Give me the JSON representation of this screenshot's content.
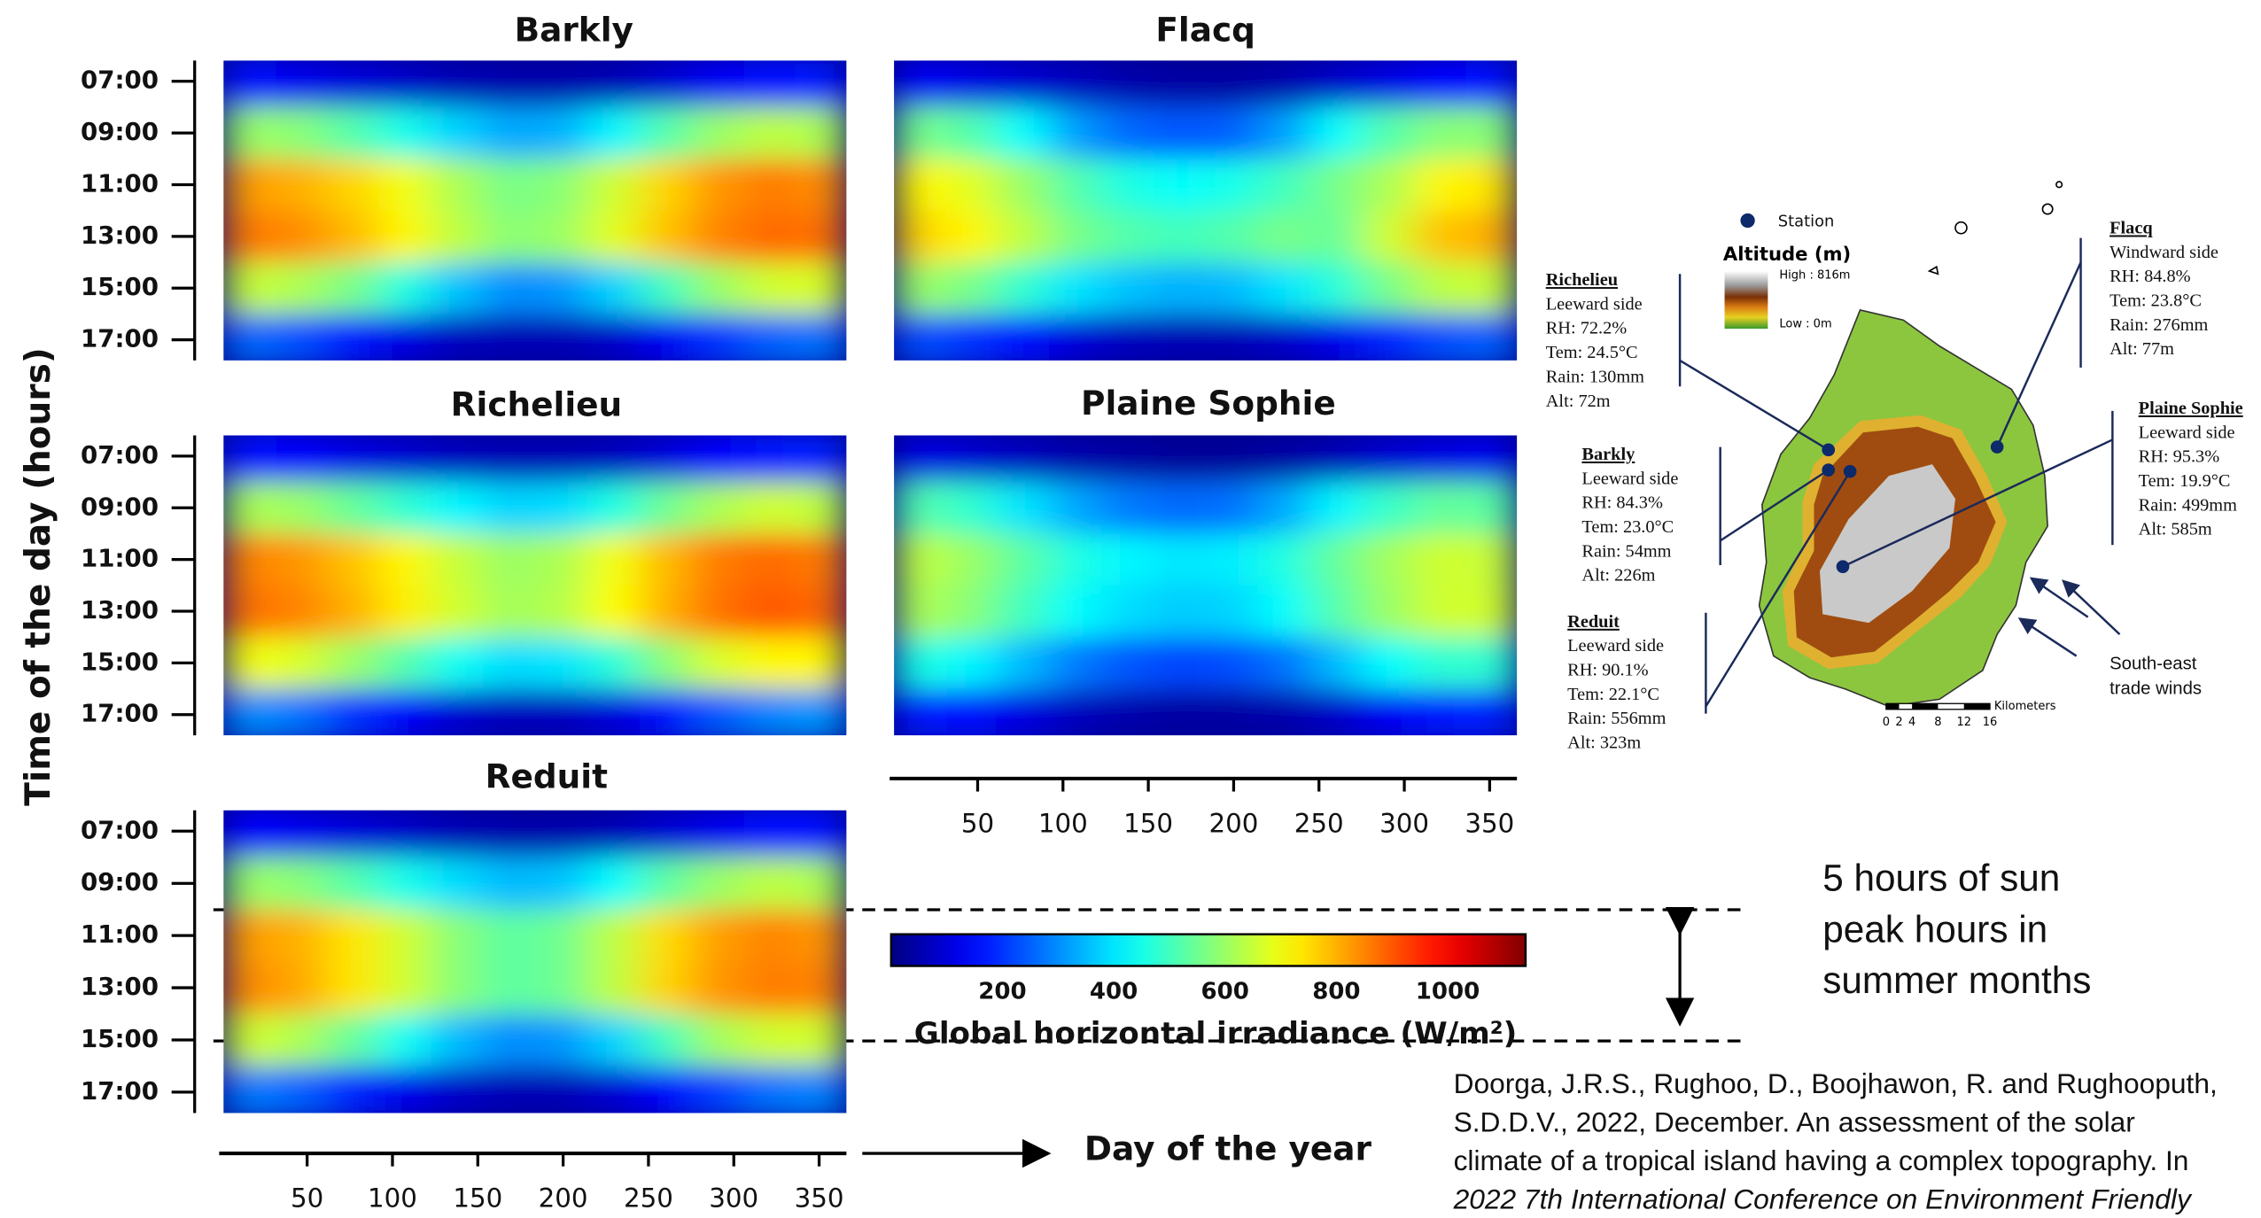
{
  "chart_data": [
    {
      "type": "heatmap",
      "title": "Barkly",
      "xlim": [
        1,
        366
      ],
      "ylim": [
        17.8,
        6.2
      ],
      "yticks": [
        {
          "value": 7,
          "label": "07:00"
        },
        {
          "value": 9,
          "label": "09:00"
        },
        {
          "value": 11,
          "label": "11:00"
        },
        {
          "value": 13,
          "label": "13:00"
        },
        {
          "value": 15,
          "label": "15:00"
        },
        {
          "value": 17,
          "label": "17:00"
        }
      ],
      "day_edges": [
        1,
        32,
        61,
        92,
        122,
        153,
        183,
        214,
        245,
        275,
        306,
        336,
        366
      ],
      "hour_edges": [
        6,
        8,
        10,
        12,
        14,
        16,
        18
      ],
      "z": [
        [
          150,
          120,
          100,
          80,
          60,
          50,
          50,
          60,
          90,
          130,
          160,
          170
        ],
        [
          600,
          580,
          520,
          450,
          380,
          330,
          340,
          420,
          520,
          600,
          640,
          620
        ],
        [
          820,
          800,
          760,
          700,
          620,
          560,
          580,
          660,
          760,
          830,
          860,
          840
        ],
        [
          860,
          840,
          790,
          720,
          640,
          580,
          600,
          680,
          780,
          850,
          880,
          870
        ],
        [
          650,
          620,
          560,
          460,
          360,
          300,
          310,
          380,
          500,
          600,
          660,
          670
        ],
        [
          260,
          230,
          170,
          110,
          70,
          60,
          60,
          80,
          130,
          200,
          250,
          270
        ]
      ]
    },
    {
      "type": "heatmap",
      "title": "Flacq",
      "xlim": [
        1,
        366
      ],
      "ylim": [
        17.8,
        6.2
      ],
      "day_edges": [
        1,
        32,
        61,
        92,
        122,
        153,
        183,
        214,
        245,
        275,
        306,
        336,
        366
      ],
      "hour_edges": [
        6,
        8,
        10,
        12,
        14,
        16,
        18
      ],
      "z": [
        [
          130,
          110,
          90,
          70,
          50,
          40,
          40,
          50,
          80,
          110,
          140,
          150
        ],
        [
          560,
          520,
          430,
          320,
          260,
          240,
          250,
          320,
          430,
          520,
          580,
          580
        ],
        [
          720,
          680,
          600,
          520,
          460,
          430,
          450,
          500,
          560,
          620,
          720,
          740
        ],
        [
          760,
          720,
          640,
          560,
          520,
          500,
          520,
          560,
          540,
          660,
          780,
          800
        ],
        [
          600,
          560,
          480,
          400,
          360,
          340,
          350,
          400,
          470,
          560,
          640,
          650
        ],
        [
          230,
          200,
          150,
          100,
          70,
          60,
          60,
          80,
          120,
          180,
          230,
          250
        ]
      ]
    },
    {
      "type": "heatmap",
      "title": "Richelieu",
      "xlim": [
        1,
        366
      ],
      "ylim": [
        17.8,
        6.2
      ],
      "yticks": [
        {
          "value": 7,
          "label": "07:00"
        },
        {
          "value": 9,
          "label": "09:00"
        },
        {
          "value": 11,
          "label": "11:00"
        },
        {
          "value": 13,
          "label": "13:00"
        },
        {
          "value": 15,
          "label": "15:00"
        },
        {
          "value": 17,
          "label": "17:00"
        }
      ],
      "day_edges": [
        1,
        32,
        61,
        92,
        122,
        153,
        183,
        214,
        245,
        275,
        306,
        336,
        366
      ],
      "hour_edges": [
        6,
        8,
        10,
        12,
        14,
        16,
        18
      ],
      "z": [
        [
          160,
          140,
          110,
          90,
          70,
          60,
          60,
          70,
          100,
          140,
          170,
          180
        ],
        [
          620,
          600,
          540,
          480,
          420,
          380,
          390,
          460,
          550,
          620,
          660,
          640
        ],
        [
          850,
          830,
          780,
          720,
          650,
          600,
          620,
          700,
          790,
          860,
          880,
          860
        ],
        [
          870,
          850,
          800,
          730,
          660,
          610,
          630,
          710,
          800,
          870,
          900,
          880
        ],
        [
          700,
          670,
          600,
          520,
          440,
          390,
          400,
          470,
          580,
          670,
          720,
          720
        ],
        [
          300,
          270,
          200,
          140,
          90,
          70,
          70,
          100,
          160,
          240,
          290,
          310
        ]
      ]
    },
    {
      "type": "heatmap",
      "title": "Plaine Sophie",
      "xlim": [
        1,
        366
      ],
      "ylim": [
        17.8,
        6.2
      ],
      "xticks": [
        50,
        100,
        150,
        200,
        250,
        300,
        350
      ],
      "day_edges": [
        1,
        32,
        61,
        92,
        122,
        153,
        183,
        214,
        245,
        275,
        306,
        336,
        366
      ],
      "hour_edges": [
        6,
        8,
        10,
        12,
        14,
        16,
        18
      ],
      "z": [
        [
          110,
          90,
          70,
          50,
          40,
          30,
          30,
          40,
          60,
          90,
          110,
          120
        ],
        [
          520,
          480,
          400,
          330,
          280,
          260,
          270,
          330,
          420,
          490,
          540,
          530
        ],
        [
          640,
          600,
          530,
          460,
          420,
          400,
          410,
          460,
          540,
          610,
          660,
          650
        ],
        [
          620,
          580,
          500,
          430,
          390,
          370,
          380,
          430,
          520,
          600,
          660,
          660
        ],
        [
          460,
          420,
          350,
          280,
          240,
          220,
          230,
          270,
          350,
          430,
          480,
          480
        ],
        [
          170,
          150,
          110,
          70,
          50,
          40,
          40,
          50,
          80,
          130,
          170,
          180
        ]
      ]
    },
    {
      "type": "heatmap",
      "title": "Reduit",
      "xlim": [
        1,
        366
      ],
      "ylim": [
        17.8,
        6.2
      ],
      "yticks": [
        {
          "value": 7,
          "label": "07:00"
        },
        {
          "value": 9,
          "label": "09:00"
        },
        {
          "value": 11,
          "label": "11:00"
        },
        {
          "value": 13,
          "label": "13:00"
        },
        {
          "value": 15,
          "label": "15:00"
        },
        {
          "value": 17,
          "label": "17:00"
        }
      ],
      "xticks": [
        50,
        100,
        150,
        200,
        250,
        300,
        350
      ],
      "day_edges": [
        1,
        32,
        61,
        92,
        122,
        153,
        183,
        214,
        245,
        275,
        306,
        336,
        366
      ],
      "hour_edges": [
        6,
        8,
        10,
        12,
        14,
        16,
        18
      ],
      "z": [
        [
          140,
          120,
          100,
          80,
          60,
          50,
          50,
          60,
          90,
          120,
          150,
          160
        ],
        [
          600,
          580,
          520,
          450,
          390,
          350,
          360,
          430,
          530,
          600,
          640,
          620
        ],
        [
          820,
          800,
          740,
          660,
          580,
          530,
          550,
          640,
          750,
          820,
          850,
          830
        ],
        [
          840,
          810,
          740,
          660,
          580,
          530,
          550,
          640,
          760,
          830,
          860,
          850
        ],
        [
          660,
          620,
          540,
          440,
          350,
          300,
          310,
          380,
          500,
          610,
          660,
          660
        ],
        [
          280,
          250,
          180,
          120,
          80,
          60,
          60,
          90,
          140,
          210,
          270,
          290
        ]
      ]
    }
  ],
  "y_label": "Time of the day (hours)",
  "x_label": "Day of the year",
  "colorbar": {
    "label": "Global horizontal irradiance (W/m²)",
    "clim": [
      0,
      1140
    ],
    "ticks": [
      200,
      400,
      600,
      800,
      1000
    ]
  },
  "annotation": [
    "5 hours of sun",
    "peak hours in",
    "summer months"
  ],
  "citation": [
    "Doorga, J.R.S., Rughoo, D., Boojhawon, R. and Rughooputh,",
    "S.D.D.V., 2022, December. An assessment of the solar",
    "climate of a tropical island having a complex topography. In",
    "2022 7th International Conference on Environment Friendly"
  ],
  "map": {
    "legend": {
      "station": "Station",
      "title": "Altitude (m)",
      "high": "High : 816m",
      "low": "Low : 0m"
    },
    "scale": {
      "unit": "Kilometers",
      "labels": [
        0,
        2,
        4,
        8,
        12,
        16
      ]
    },
    "wind_label": [
      "South-east",
      "trade winds"
    ],
    "stations": [
      {
        "name": "Richelieu",
        "lines": [
          "Leeward side",
          "RH: 72.2%",
          "Tem: 24.5°C",
          "Rain: 130mm",
          "Alt: 72m"
        ]
      },
      {
        "name": "Barkly",
        "lines": [
          "Leeward side",
          "RH: 84.3%",
          "Tem: 23.0°C",
          "Rain: 54mm",
          "Alt: 226m"
        ]
      },
      {
        "name": "Reduit",
        "lines": [
          "Leeward side",
          "RH: 90.1%",
          "Tem: 22.1°C",
          "Rain: 556mm",
          "Alt: 323m"
        ]
      },
      {
        "name": "Flacq",
        "lines": [
          "Windward side",
          "RH: 84.8%",
          "Tem: 23.8°C",
          "Rain: 276mm",
          "Alt: 77m"
        ]
      },
      {
        "name": "Plaine Sophie",
        "lines": [
          "Leeward side",
          "RH: 95.3%",
          "Tem: 19.9°C",
          "Rain: 499mm",
          "Alt: 585m"
        ]
      }
    ]
  }
}
